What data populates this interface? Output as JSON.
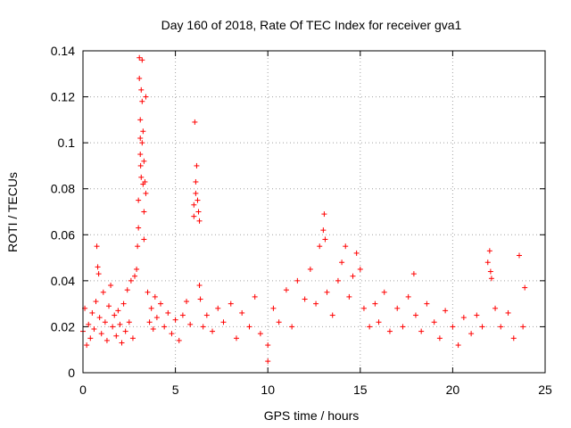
{
  "chart_data": {
    "type": "scatter",
    "title": "Day 160 of 2018, Rate Of TEC Index for receiver gva1",
    "xlabel": "GPS time / hours",
    "ylabel": "ROTI / TECUs",
    "xlim": [
      0,
      25
    ],
    "ylim": [
      0,
      0.14
    ],
    "x_ticks": [
      0,
      5,
      10,
      15,
      20,
      25
    ],
    "y_ticks": [
      0,
      0.02,
      0.04,
      0.06,
      0.08,
      0.1,
      0.12,
      0.14
    ],
    "x_tick_labels": [
      "0",
      "5",
      "10",
      "15",
      "20",
      "25"
    ],
    "y_tick_labels": [
      "0",
      "0.02",
      "0.04",
      "0.06",
      "0.08",
      "0.1",
      "0.12",
      "0.14"
    ],
    "grid": true,
    "marker": "+",
    "color": "#ff0000",
    "series": [
      {
        "values": [
          [
            0.0,
            0.018
          ],
          [
            0.1,
            0.028
          ],
          [
            0.2,
            0.012
          ],
          [
            0.3,
            0.021
          ],
          [
            0.4,
            0.015
          ],
          [
            0.5,
            0.026
          ],
          [
            0.6,
            0.019
          ],
          [
            0.7,
            0.031
          ],
          [
            0.75,
            0.055
          ],
          [
            0.8,
            0.046
          ],
          [
            0.85,
            0.043
          ],
          [
            0.9,
            0.024
          ],
          [
            1.0,
            0.017
          ],
          [
            1.1,
            0.035
          ],
          [
            1.2,
            0.022
          ],
          [
            1.3,
            0.014
          ],
          [
            1.4,
            0.029
          ],
          [
            1.5,
            0.038
          ],
          [
            1.6,
            0.02
          ],
          [
            1.7,
            0.025
          ],
          [
            1.8,
            0.016
          ],
          [
            1.9,
            0.027
          ],
          [
            2.0,
            0.021
          ],
          [
            2.1,
            0.013
          ],
          [
            2.2,
            0.03
          ],
          [
            2.3,
            0.018
          ],
          [
            2.4,
            0.036
          ],
          [
            2.5,
            0.022
          ],
          [
            2.6,
            0.04
          ],
          [
            2.7,
            0.015
          ],
          [
            2.8,
            0.042
          ],
          [
            2.9,
            0.045
          ],
          [
            2.95,
            0.055
          ],
          [
            3.0,
            0.063
          ],
          [
            3.0,
            0.075
          ],
          [
            3.05,
            0.137
          ],
          [
            3.05,
            0.128
          ],
          [
            3.1,
            0.11
          ],
          [
            3.1,
            0.102
          ],
          [
            3.1,
            0.095
          ],
          [
            3.12,
            0.09
          ],
          [
            3.15,
            0.123
          ],
          [
            3.15,
            0.085
          ],
          [
            3.2,
            0.136
          ],
          [
            3.2,
            0.118
          ],
          [
            3.2,
            0.1
          ],
          [
            3.25,
            0.105
          ],
          [
            3.25,
            0.082
          ],
          [
            3.3,
            0.092
          ],
          [
            3.3,
            0.07
          ],
          [
            3.3,
            0.058
          ],
          [
            3.35,
            0.083
          ],
          [
            3.4,
            0.12
          ],
          [
            3.4,
            0.078
          ],
          [
            3.5,
            0.035
          ],
          [
            3.6,
            0.022
          ],
          [
            3.7,
            0.028
          ],
          [
            3.8,
            0.019
          ],
          [
            3.9,
            0.033
          ],
          [
            4.0,
            0.024
          ],
          [
            4.2,
            0.03
          ],
          [
            4.4,
            0.02
          ],
          [
            4.6,
            0.026
          ],
          [
            4.8,
            0.017
          ],
          [
            5.0,
            0.023
          ],
          [
            5.2,
            0.014
          ],
          [
            5.4,
            0.025
          ],
          [
            5.6,
            0.031
          ],
          [
            5.8,
            0.021
          ],
          [
            6.0,
            0.073
          ],
          [
            6.0,
            0.068
          ],
          [
            6.05,
            0.109
          ],
          [
            6.1,
            0.078
          ],
          [
            6.1,
            0.083
          ],
          [
            6.15,
            0.09
          ],
          [
            6.2,
            0.075
          ],
          [
            6.25,
            0.07
          ],
          [
            6.3,
            0.066
          ],
          [
            6.3,
            0.038
          ],
          [
            6.35,
            0.032
          ],
          [
            6.5,
            0.02
          ],
          [
            6.7,
            0.025
          ],
          [
            7.0,
            0.018
          ],
          [
            7.3,
            0.028
          ],
          [
            7.6,
            0.022
          ],
          [
            8.0,
            0.03
          ],
          [
            8.3,
            0.015
          ],
          [
            8.6,
            0.026
          ],
          [
            9.0,
            0.02
          ],
          [
            9.3,
            0.033
          ],
          [
            9.6,
            0.017
          ],
          [
            10.0,
            0.012
          ],
          [
            10.0,
            0.005
          ],
          [
            10.3,
            0.028
          ],
          [
            10.6,
            0.022
          ],
          [
            11.0,
            0.036
          ],
          [
            11.3,
            0.02
          ],
          [
            11.6,
            0.04
          ],
          [
            12.0,
            0.032
          ],
          [
            12.3,
            0.045
          ],
          [
            12.6,
            0.03
          ],
          [
            12.8,
            0.055
          ],
          [
            13.0,
            0.062
          ],
          [
            13.05,
            0.069
          ],
          [
            13.1,
            0.058
          ],
          [
            13.2,
            0.035
          ],
          [
            13.5,
            0.025
          ],
          [
            13.8,
            0.04
          ],
          [
            14.0,
            0.048
          ],
          [
            14.2,
            0.055
          ],
          [
            14.4,
            0.033
          ],
          [
            14.6,
            0.042
          ],
          [
            14.8,
            0.052
          ],
          [
            15.0,
            0.045
          ],
          [
            15.2,
            0.028
          ],
          [
            15.5,
            0.02
          ],
          [
            15.8,
            0.03
          ],
          [
            16.0,
            0.022
          ],
          [
            16.3,
            0.035
          ],
          [
            16.6,
            0.018
          ],
          [
            17.0,
            0.028
          ],
          [
            17.3,
            0.02
          ],
          [
            17.6,
            0.033
          ],
          [
            17.9,
            0.043
          ],
          [
            18.0,
            0.025
          ],
          [
            18.3,
            0.018
          ],
          [
            18.6,
            0.03
          ],
          [
            19.0,
            0.022
          ],
          [
            19.3,
            0.015
          ],
          [
            19.6,
            0.027
          ],
          [
            20.0,
            0.02
          ],
          [
            20.3,
            0.012
          ],
          [
            20.6,
            0.024
          ],
          [
            21.0,
            0.017
          ],
          [
            21.3,
            0.025
          ],
          [
            21.6,
            0.02
          ],
          [
            21.9,
            0.048
          ],
          [
            22.0,
            0.053
          ],
          [
            22.05,
            0.044
          ],
          [
            22.1,
            0.041
          ],
          [
            22.3,
            0.028
          ],
          [
            22.6,
            0.02
          ],
          [
            23.0,
            0.026
          ],
          [
            23.3,
            0.015
          ],
          [
            23.6,
            0.051
          ],
          [
            23.8,
            0.02
          ],
          [
            23.9,
            0.037
          ]
        ]
      }
    ]
  }
}
